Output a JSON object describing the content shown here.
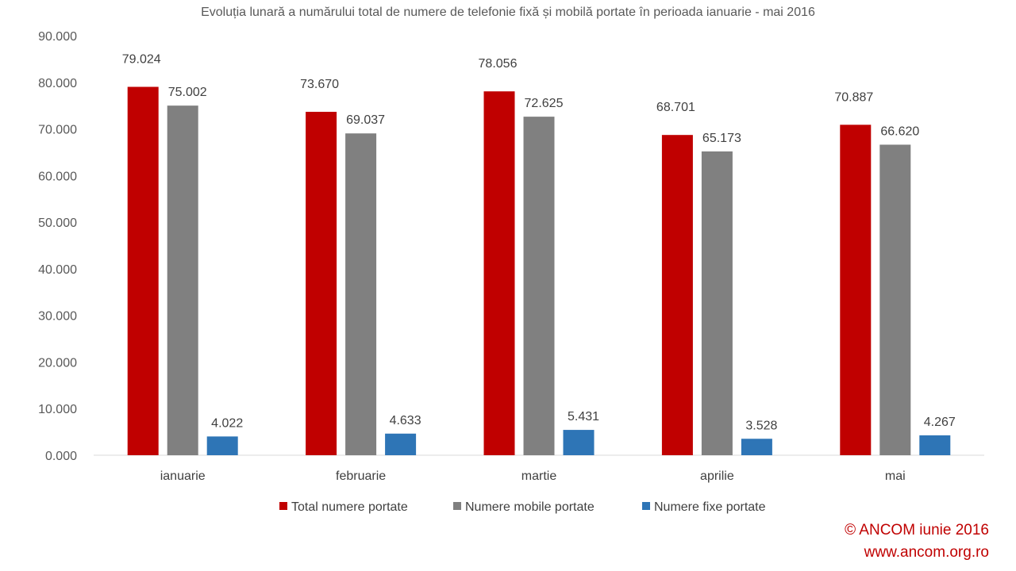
{
  "chart_data": {
    "type": "bar",
    "title": "Evoluția lunară a numărului total de numere  de telefonie fixă și mobilă portate în perioada ianuarie - mai 2016",
    "xlabel": "",
    "ylabel": "",
    "ylim": [
      0,
      90000
    ],
    "yticks": [
      0,
      10000,
      20000,
      30000,
      40000,
      50000,
      60000,
      70000,
      80000,
      90000
    ],
    "ytick_labels": [
      "0.000",
      "10.000",
      "20.000",
      "30.000",
      "40.000",
      "50.000",
      "60.000",
      "70.000",
      "80.000",
      "90.000"
    ],
    "grid": false,
    "legend_position": "bottom",
    "categories": [
      "ianuarie",
      "februarie",
      "martie",
      "aprilie",
      "mai"
    ],
    "series": [
      {
        "name": "Total numere portate",
        "color": "#c00000",
        "values": [
          79024,
          73670,
          78056,
          68701,
          70887
        ],
        "labels": [
          "79.024",
          "73.670",
          "78.056",
          "68.701",
          "70.887"
        ]
      },
      {
        "name": "Numere mobile portate",
        "color": "#808080",
        "values": [
          75002,
          69037,
          72625,
          65173,
          66620
        ],
        "labels": [
          "75.002",
          "69.037",
          "72.625",
          "65.173",
          "66.620"
        ]
      },
      {
        "name": "Numere fixe portate",
        "color": "#2e75b6",
        "values": [
          4022,
          4633,
          5431,
          3528,
          4267
        ],
        "labels": [
          "4.022",
          "4.633",
          "5.431",
          "3.528",
          "4.267"
        ]
      }
    ]
  },
  "footer": {
    "copyright": "© ANCOM iunie 2016",
    "website": "www.ancom.org.ro"
  }
}
